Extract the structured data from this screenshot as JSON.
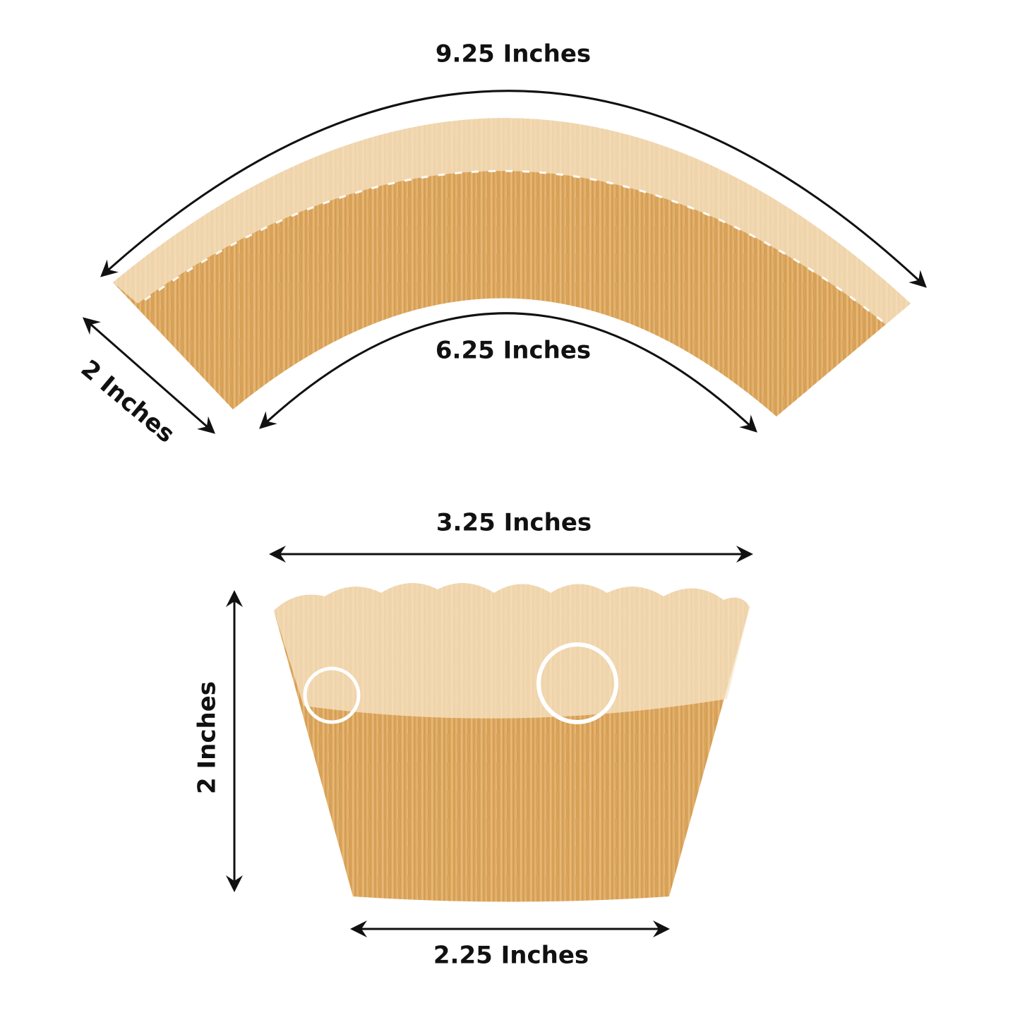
{
  "flat_wrapper": {
    "outer_length": "9.25 Inches",
    "inner_length": "6.25 Inches",
    "height": "2 Inches"
  },
  "assembled_wrapper": {
    "top_width": "3.25 Inches",
    "height": "2 Inches",
    "bottom_width": "2.25 Inches"
  }
}
